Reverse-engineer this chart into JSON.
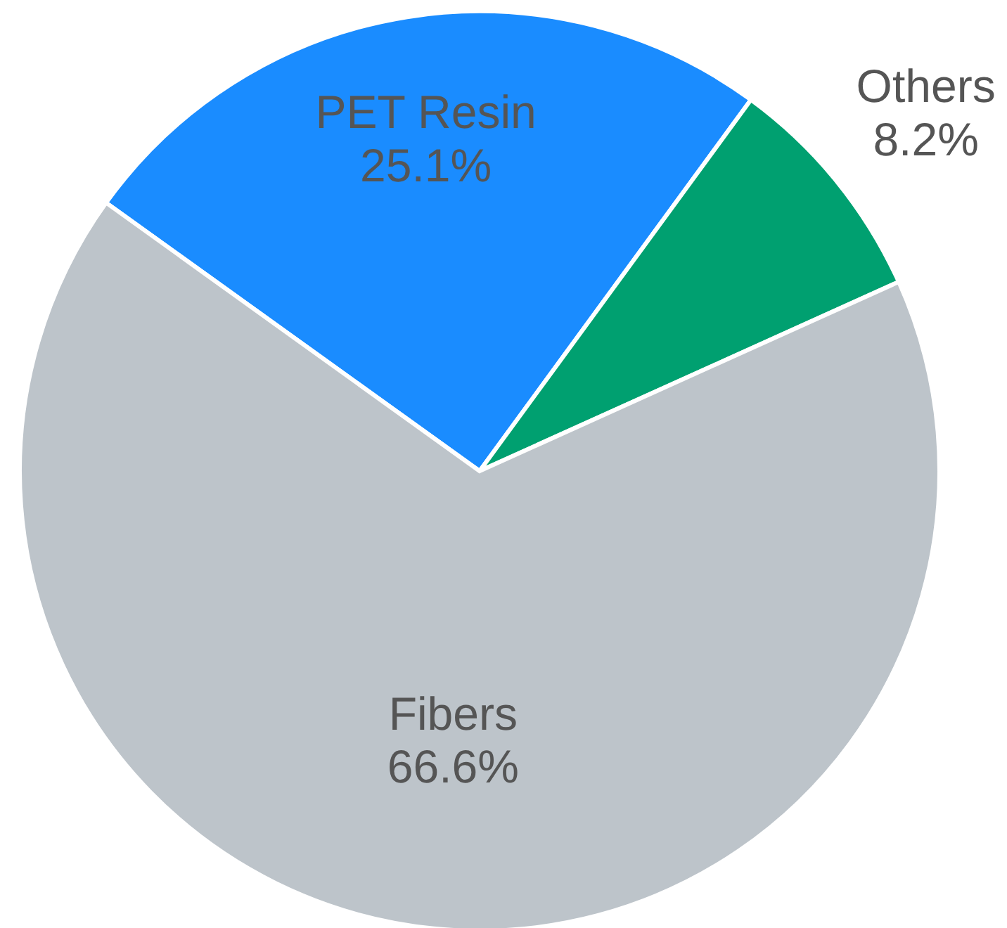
{
  "chart_data": {
    "type": "pie",
    "categories": [
      "PET Resin",
      "Others",
      "Fibers"
    ],
    "values": [
      25.1,
      8.2,
      66.6
    ],
    "value_labels": [
      "25.1%",
      "8.2%",
      "66.6%"
    ],
    "colors": [
      "#1a8cff",
      "#00a070",
      "#bdc4ca"
    ]
  }
}
